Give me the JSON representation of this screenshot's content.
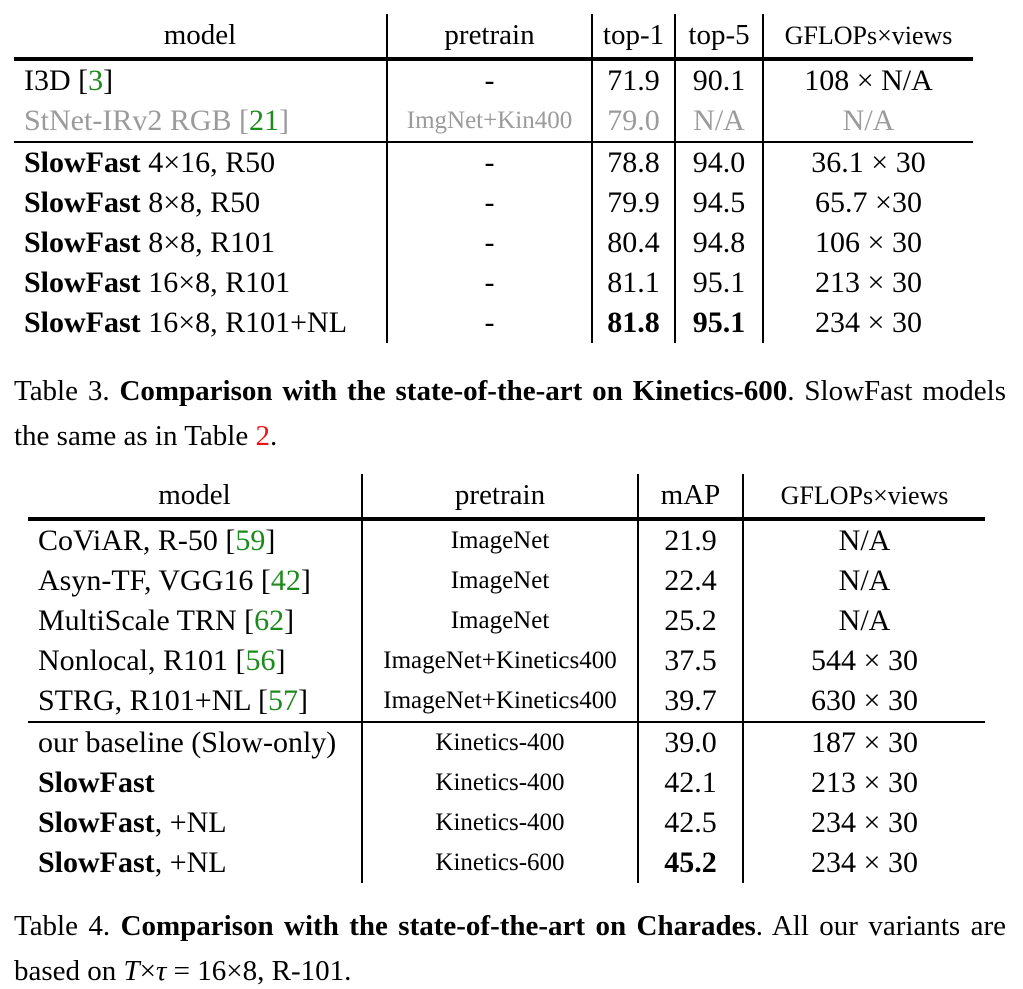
{
  "colors": {
    "citation_green": "#1d8a1d",
    "ref_red": "#ee1111",
    "muted_gray": "#9b9b9b",
    "rule_black": "#000000"
  },
  "table3": {
    "headers": [
      "model",
      "pretrain",
      "top-1",
      "top-5",
      "GFLOPs×views"
    ],
    "rows": [
      {
        "model": [
          {
            "t": "I3D [",
            "f": "p"
          },
          {
            "t": "3",
            "f": "c"
          },
          {
            "t": "]",
            "f": "p"
          }
        ],
        "cells": [
          {
            "t": "-"
          },
          {
            "t": "71.9"
          },
          {
            "t": "90.1"
          },
          {
            "t": "108 × N/A"
          }
        ]
      },
      {
        "model": [
          {
            "t": "StNet-IRv2 RGB [",
            "f": "p"
          },
          {
            "t": "21",
            "f": "c"
          },
          {
            "t": "]",
            "f": "p"
          }
        ],
        "cells": [
          {
            "t": "ImgNet+Kin400",
            "small": true
          },
          {
            "t": "79.0"
          },
          {
            "t": "N/A"
          },
          {
            "t": "N/A"
          }
        ],
        "gray": true
      },
      {
        "model": [
          {
            "t": "SlowFast",
            "f": "b"
          },
          {
            "t": " 4×16, R50",
            "f": "p"
          }
        ],
        "cells": [
          {
            "t": "-"
          },
          {
            "t": "78.8"
          },
          {
            "t": "94.0"
          },
          {
            "t": "36.1 × 30"
          }
        ],
        "rule_above": true
      },
      {
        "model": [
          {
            "t": "SlowFast",
            "f": "b"
          },
          {
            "t": " 8×8, R50",
            "f": "p"
          }
        ],
        "cells": [
          {
            "t": "-"
          },
          {
            "t": "79.9"
          },
          {
            "t": "94.5"
          },
          {
            "t": "65.7 ×30"
          }
        ]
      },
      {
        "model": [
          {
            "t": "SlowFast",
            "f": "b"
          },
          {
            "t": " 8×8, R101",
            "f": "p"
          }
        ],
        "cells": [
          {
            "t": "-"
          },
          {
            "t": "80.4"
          },
          {
            "t": "94.8"
          },
          {
            "t": "106 × 30"
          }
        ]
      },
      {
        "model": [
          {
            "t": "SlowFast",
            "f": "b"
          },
          {
            "t": " 16×8, R101",
            "f": "p"
          }
        ],
        "cells": [
          {
            "t": "-"
          },
          {
            "t": "81.1"
          },
          {
            "t": "95.1"
          },
          {
            "t": "213 × 30"
          }
        ]
      },
      {
        "model": [
          {
            "t": "SlowFast",
            "f": "b"
          },
          {
            "t": " 16×8, R101+NL",
            "f": "p"
          }
        ],
        "cells": [
          {
            "t": "-"
          },
          {
            "t": "81.8",
            "b": true
          },
          {
            "t": "95.1",
            "b": true
          },
          {
            "t": "234 × 30"
          }
        ]
      }
    ],
    "caption": [
      {
        "t": "Table 3. ",
        "f": "p"
      },
      {
        "t": "Comparison with the state-of-the-art on Kinetics-600",
        "f": "b"
      },
      {
        "t": ". SlowFast models the same as in Table ",
        "f": "p"
      },
      {
        "t": "2",
        "f": "r"
      },
      {
        "t": ".",
        "f": "p"
      }
    ]
  },
  "table4": {
    "headers": [
      "model",
      "pretrain",
      "mAP",
      "GFLOPs×views"
    ],
    "rows": [
      {
        "model": [
          {
            "t": "CoViAR, R-50 [",
            "f": "p"
          },
          {
            "t": "59",
            "f": "c"
          },
          {
            "t": "]",
            "f": "p"
          }
        ],
        "cells": [
          {
            "t": "ImageNet",
            "small": true
          },
          {
            "t": "21.9"
          },
          {
            "t": "N/A"
          }
        ]
      },
      {
        "model": [
          {
            "t": "Asyn-TF, VGG16 [",
            "f": "p"
          },
          {
            "t": "42",
            "f": "c"
          },
          {
            "t": "]",
            "f": "p"
          }
        ],
        "cells": [
          {
            "t": "ImageNet",
            "small": true
          },
          {
            "t": "22.4"
          },
          {
            "t": "N/A"
          }
        ]
      },
      {
        "model": [
          {
            "t": "MultiScale TRN [",
            "f": "p"
          },
          {
            "t": "62",
            "f": "c"
          },
          {
            "t": "]",
            "f": "p"
          }
        ],
        "cells": [
          {
            "t": "ImageNet",
            "small": true
          },
          {
            "t": "25.2"
          },
          {
            "t": "N/A"
          }
        ]
      },
      {
        "model": [
          {
            "t": "Nonlocal, R101 [",
            "f": "p"
          },
          {
            "t": "56",
            "f": "c"
          },
          {
            "t": "]",
            "f": "p"
          }
        ],
        "cells": [
          {
            "t": "ImageNet+Kinetics400",
            "small": true
          },
          {
            "t": "37.5"
          },
          {
            "t": "544 × 30"
          }
        ]
      },
      {
        "model": [
          {
            "t": "STRG, R101+NL [",
            "f": "p"
          },
          {
            "t": "57",
            "f": "c"
          },
          {
            "t": "]",
            "f": "p"
          }
        ],
        "cells": [
          {
            "t": "ImageNet+Kinetics400",
            "small": true
          },
          {
            "t": "39.7"
          },
          {
            "t": "630 × 30"
          }
        ]
      },
      {
        "model": [
          {
            "t": "our baseline (Slow-only)",
            "f": "p"
          }
        ],
        "cells": [
          {
            "t": "Kinetics-400",
            "small": true
          },
          {
            "t": "39.0"
          },
          {
            "t": "187 × 30"
          }
        ],
        "rule_above": true
      },
      {
        "model": [
          {
            "t": "SlowFast",
            "f": "b"
          }
        ],
        "cells": [
          {
            "t": "Kinetics-400",
            "small": true
          },
          {
            "t": "42.1"
          },
          {
            "t": "213 × 30"
          }
        ]
      },
      {
        "model": [
          {
            "t": "SlowFast",
            "f": "b"
          },
          {
            "t": ", +NL",
            "f": "p"
          }
        ],
        "cells": [
          {
            "t": "Kinetics-400",
            "small": true
          },
          {
            "t": "42.5"
          },
          {
            "t": "234 × 30"
          }
        ]
      },
      {
        "model": [
          {
            "t": "SlowFast",
            "f": "b"
          },
          {
            "t": ", +NL",
            "f": "p"
          }
        ],
        "cells": [
          {
            "t": "Kinetics-600",
            "small": true
          },
          {
            "t": "45.2",
            "b": true
          },
          {
            "t": "234 × 30"
          }
        ]
      }
    ],
    "caption": [
      {
        "t": "Table 4. ",
        "f": "p"
      },
      {
        "t": "Comparison with the state-of-the-art on Charades",
        "f": "b"
      },
      {
        "t": ". All our variants are based on ",
        "f": "p"
      },
      {
        "t": "T",
        "f": "i"
      },
      {
        "t": "×",
        "f": "p"
      },
      {
        "t": "τ",
        "f": "i"
      },
      {
        "t": " = 16×8, R-101.",
        "f": "p"
      }
    ]
  }
}
